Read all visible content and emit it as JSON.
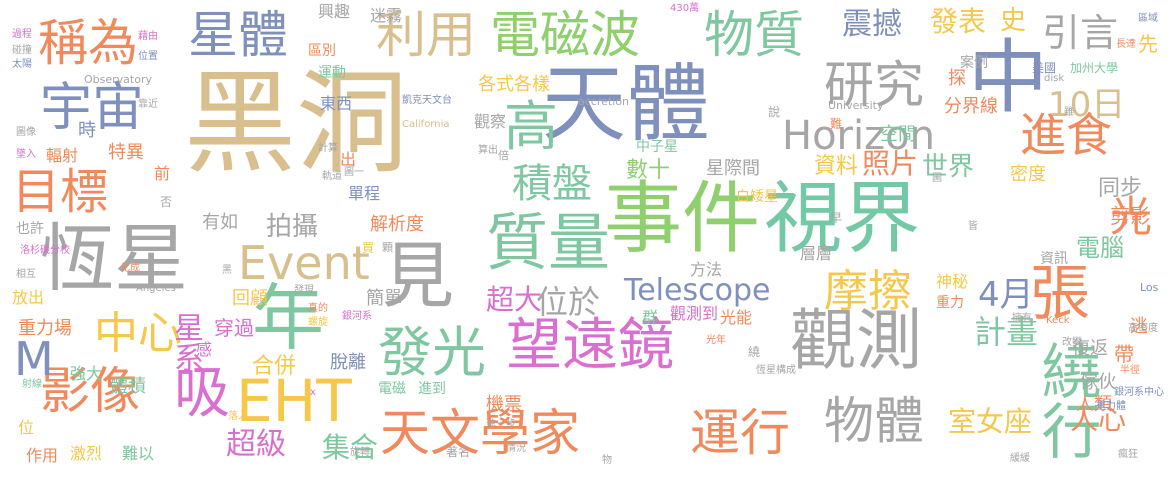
{
  "words": [
    {
      "text": "黑洞",
      "color": "#d9bf8e"
    },
    {
      "text": "天體",
      "color": "#7e90bb"
    },
    {
      "text": "事件",
      "color": "#8fcf6e"
    },
    {
      "text": "視界",
      "color": "#73c9a5"
    },
    {
      "text": "恆星",
      "color": "#a6a6a6"
    },
    {
      "text": "觀測",
      "color": "#a6a6a6"
    },
    {
      "text": "質量",
      "color": "#7fc7a0"
    },
    {
      "text": "望遠鏡",
      "color": "#d96fcf"
    },
    {
      "text": "天文學家",
      "color": "#f08a5d"
    },
    {
      "text": "運行",
      "color": "#f08a5d"
    },
    {
      "text": "見",
      "color": "#a6a6a6"
    },
    {
      "text": "年",
      "color": "#7fc7a0"
    },
    {
      "text": "EHT",
      "color": "#f5c84c"
    },
    {
      "text": "Event",
      "color": "#d9bf8e"
    },
    {
      "text": "Horizon",
      "color": "#a6a6a6"
    },
    {
      "text": "中",
      "color": "#7e90bb"
    },
    {
      "text": "宇宙",
      "color": "#7e90bb"
    },
    {
      "text": "目標",
      "color": "#f08a5d"
    },
    {
      "text": "星體",
      "color": "#7e90bb"
    },
    {
      "text": "利用",
      "color": "#d9bf8e"
    },
    {
      "text": "電磁波",
      "color": "#8fcf6e"
    },
    {
      "text": "物質",
      "color": "#7fc7a0"
    },
    {
      "text": "稱為",
      "color": "#f08a5d"
    },
    {
      "text": "高",
      "color": "#7fc7a0"
    },
    {
      "text": "研究",
      "color": "#a6a6a6"
    },
    {
      "text": "進食",
      "color": "#f08a5d"
    },
    {
      "text": "積盤",
      "color": "#7fc7a0"
    },
    {
      "text": "張",
      "color": "#f08a5d"
    },
    {
      "text": "發光",
      "color": "#7fc7a0"
    },
    {
      "text": "中心",
      "color": "#f5c84c"
    },
    {
      "text": "繞行",
      "color": "#7fc7a0"
    },
    {
      "text": "影像",
      "color": "#f08a5d"
    },
    {
      "text": "吸",
      "color": "#d96fcf"
    },
    {
      "text": "物體",
      "color": "#a6a6a6"
    },
    {
      "text": "摩擦",
      "color": "#f5c84c"
    },
    {
      "text": "Telescope",
      "color": "#7e90bb"
    },
    {
      "text": "位於",
      "color": "#a6a6a6"
    },
    {
      "text": "M",
      "color": "#7e90bb"
    },
    {
      "text": "震撼",
      "color": "#7e90bb"
    },
    {
      "text": "發表",
      "color": "#f5c84c"
    },
    {
      "text": "引言",
      "color": "#a6a6a6"
    },
    {
      "text": "10日",
      "color": "#d9bf8e"
    },
    {
      "text": "史",
      "color": "#f5c84c"
    },
    {
      "text": "光",
      "color": "#f08a5d"
    },
    {
      "text": "4月",
      "color": "#7e90bb"
    },
    {
      "text": "計畫",
      "color": "#7fc7a0"
    },
    {
      "text": "室女座",
      "color": "#f5c84c"
    },
    {
      "text": "人心",
      "color": "#f08a5d"
    },
    {
      "text": "超大",
      "color": "#d96fcf"
    },
    {
      "text": "超級",
      "color": "#d96fcf"
    },
    {
      "text": "集合",
      "color": "#7fc7a0"
    },
    {
      "text": "合併",
      "color": "#f5c84c"
    },
    {
      "text": "星系",
      "color": "#d96fcf"
    },
    {
      "text": "拍攝",
      "color": "#a6a6a6"
    },
    {
      "text": "世界",
      "color": "#7fc7a0"
    },
    {
      "text": "照片",
      "color": "#f08a5d"
    },
    {
      "text": "資料",
      "color": "#f5c84c"
    },
    {
      "text": "數十",
      "color": "#8fcf6e"
    },
    {
      "text": "同步",
      "color": "#a6a6a6"
    },
    {
      "text": "電腦",
      "color": "#7fc7a0"
    },
    {
      "text": "剪影",
      "color": "#f08a5d"
    },
    {
      "text": "先",
      "color": "#f5c84c"
    },
    {
      "text": "探",
      "color": "#f08a5d"
    },
    {
      "text": "空間",
      "color": "#7fc7a0"
    },
    {
      "text": "分界線",
      "color": "#f08a5d"
    },
    {
      "text": "密度",
      "color": "#f5c84c"
    },
    {
      "text": "興趣",
      "color": "#a6a6a6"
    },
    {
      "text": "迷霧",
      "color": "#a6a6a6"
    },
    {
      "text": "區別",
      "color": "#f08a5d"
    },
    {
      "text": "運動",
      "color": "#7fc7a0"
    },
    {
      "text": "東西",
      "color": "#7e90bb"
    },
    {
      "text": "各式各樣",
      "color": "#f5c84c"
    },
    {
      "text": "觀察",
      "color": "#a6a6a6"
    },
    {
      "text": "中子星",
      "color": "#7fc7a0"
    },
    {
      "text": "星際間",
      "color": "#a6a6a6"
    },
    {
      "text": "白矮星",
      "color": "#f5c84c"
    },
    {
      "text": "單程",
      "color": "#7e90bb"
    },
    {
      "text": "解析度",
      "color": "#f08a5d"
    },
    {
      "text": "有如",
      "color": "#a6a6a6"
    },
    {
      "text": "特異",
      "color": "#f08a5d"
    },
    {
      "text": "時",
      "color": "#7e90bb"
    },
    {
      "text": "輻射",
      "color": "#f08a5d"
    },
    {
      "text": "前",
      "color": "#f08a5d"
    },
    {
      "text": "出",
      "color": "#f08a5d"
    },
    {
      "text": "也許",
      "color": "#a6a6a6"
    },
    {
      "text": "回顧",
      "color": "#f5c84c"
    },
    {
      "text": "簡單",
      "color": "#a6a6a6"
    },
    {
      "text": "方法",
      "color": "#a6a6a6"
    },
    {
      "text": "光能",
      "color": "#f08a5d"
    },
    {
      "text": "重力",
      "color": "#f08a5d"
    },
    {
      "text": "神秘",
      "color": "#f5c84c"
    },
    {
      "text": "層層",
      "color": "#a6a6a6"
    },
    {
      "text": "資訊",
      "color": "#a6a6a6"
    },
    {
      "text": "逃",
      "color": "#f08a5d"
    },
    {
      "text": "帶",
      "color": "#f08a5d"
    },
    {
      "text": "復返",
      "color": "#a6a6a6"
    },
    {
      "text": "傢伙",
      "color": "#a6a6a6"
    },
    {
      "text": "人類",
      "color": "#f08a5d"
    },
    {
      "text": "放出",
      "color": "#f5c84c"
    },
    {
      "text": "重力場",
      "color": "#f08a5d"
    },
    {
      "text": "穿過",
      "color": "#d96fcf"
    },
    {
      "text": "感",
      "color": "#d96fcf"
    },
    {
      "text": "脫離",
      "color": "#7e90bb"
    },
    {
      "text": "電磁",
      "color": "#7fc7a0"
    },
    {
      "text": "進到",
      "color": "#7fc7a0"
    },
    {
      "text": "機票",
      "color": "#f08a5d"
    },
    {
      "text": "觀測到",
      "color": "#d96fcf"
    },
    {
      "text": "群",
      "color": "#7fc7a0"
    },
    {
      "text": "強大",
      "color": "#7fc7a0"
    },
    {
      "text": "體積",
      "color": "#7fc7a0"
    },
    {
      "text": "激烈",
      "color": "#f5c84c"
    },
    {
      "text": "難以",
      "color": "#7fc7a0"
    },
    {
      "text": "作用",
      "color": "#f08a5d"
    },
    {
      "text": "位",
      "color": "#f5c84c"
    },
    {
      "text": "著名",
      "color": "#a6a6a6"
    },
    {
      "text": "美國",
      "color": "#7e90bb"
    },
    {
      "text": "加州大學",
      "color": "#7fc7a0"
    },
    {
      "text": "案例",
      "color": "#a6a6a6"
    },
    {
      "text": "Observatory",
      "color": "#a6a6a6"
    },
    {
      "text": "accretion",
      "color": "#a6a6a6"
    },
    {
      "text": "University",
      "color": "#a6a6a6"
    },
    {
      "text": "California",
      "color": "#d9bf8e"
    },
    {
      "text": "Angeles",
      "color": "#a6a6a6"
    },
    {
      "text": "Keck",
      "color": "#f08a5d"
    },
    {
      "text": "Los",
      "color": "#7e90bb"
    },
    {
      "text": "disk",
      "color": "#a6a6a6"
    },
    {
      "text": "430萬",
      "color": "#d96fcf"
    },
    {
      "text": "凱克天文台",
      "color": "#7e90bb"
    },
    {
      "text": "洛杉磯分校",
      "color": "#d96fcf"
    },
    {
      "text": "銀河系中心",
      "color": "#7e90bb"
    },
    {
      "text": "說",
      "color": "#a6a6a6"
    },
    {
      "text": "難",
      "color": "#f08a5d"
    },
    {
      "text": "早",
      "color": "#a6a6a6"
    },
    {
      "text": "否",
      "color": "#a6a6a6"
    },
    {
      "text": "買",
      "color": "#f5c84c"
    },
    {
      "text": "顆",
      "color": "#a6a6a6"
    },
    {
      "text": "倍",
      "color": "#a6a6a6"
    },
    {
      "text": "繞",
      "color": "#a6a6a6"
    },
    {
      "text": "過程",
      "color": "#d96fcf"
    },
    {
      "text": "碰撞",
      "color": "#a6a6a6"
    },
    {
      "text": "太陽",
      "color": "#7e90bb"
    },
    {
      "text": "圖像",
      "color": "#a6a6a6"
    },
    {
      "text": "墜入",
      "color": "#d96fcf"
    },
    {
      "text": "相互",
      "color": "#a6a6a6"
    },
    {
      "text": "化成",
      "color": "#f08a5d"
    },
    {
      "text": "位置",
      "color": "#7e90bb"
    },
    {
      "text": "藉由",
      "color": "#d96fcf"
    },
    {
      "text": "靠近",
      "color": "#a6a6a6"
    },
    {
      "text": "計算",
      "color": "#a6a6a6"
    },
    {
      "text": "算出",
      "color": "#a6a6a6"
    },
    {
      "text": "軌道",
      "color": "#a6a6a6"
    },
    {
      "text": "發現",
      "color": "#a6a6a6"
    },
    {
      "text": "真的",
      "color": "#f08a5d"
    },
    {
      "text": "螺旋",
      "color": "#f5c84c"
    },
    {
      "text": "銀河系",
      "color": "#d96fcf"
    },
    {
      "text": "進一步",
      "color": "#a6a6a6"
    },
    {
      "text": "情況",
      "color": "#a6a6a6"
    },
    {
      "text": "旋轉",
      "color": "#a6a6a6"
    },
    {
      "text": "落入",
      "color": "#f5c84c"
    },
    {
      "text": "光年",
      "color": "#f08a5d"
    },
    {
      "text": "恆星構成",
      "color": "#a6a6a6"
    },
    {
      "text": "半徑",
      "color": "#f08a5d"
    },
    {
      "text": "擁有",
      "color": "#a6a6a6"
    },
    {
      "text": "高密度",
      "color": "#a6a6a6"
    },
    {
      "text": "改變",
      "color": "#a6a6a6"
    },
    {
      "text": "重力體",
      "color": "#7e90bb"
    },
    {
      "text": "區域",
      "color": "#7e90bb"
    },
    {
      "text": "長達",
      "color": "#f08a5d"
    },
    {
      "text": "圖一",
      "color": "#a6a6a6"
    },
    {
      "text": "緩緩",
      "color": "#a6a6a6"
    },
    {
      "text": "瘋狂",
      "color": "#a6a6a6"
    },
    {
      "text": "射線",
      "color": "#7fc7a0"
    },
    {
      "text": "物",
      "color": "#a6a6a6"
    },
    {
      "text": "圖",
      "color": "#a6a6a6"
    },
    {
      "text": "皆",
      "color": "#a6a6a6"
    },
    {
      "text": "黑",
      "color": "#a6a6a6"
    },
    {
      "text": "x",
      "color": "#d96fcf"
    },
    {
      "text": "雖",
      "color": "#a6a6a6"
    }
  ]
}
